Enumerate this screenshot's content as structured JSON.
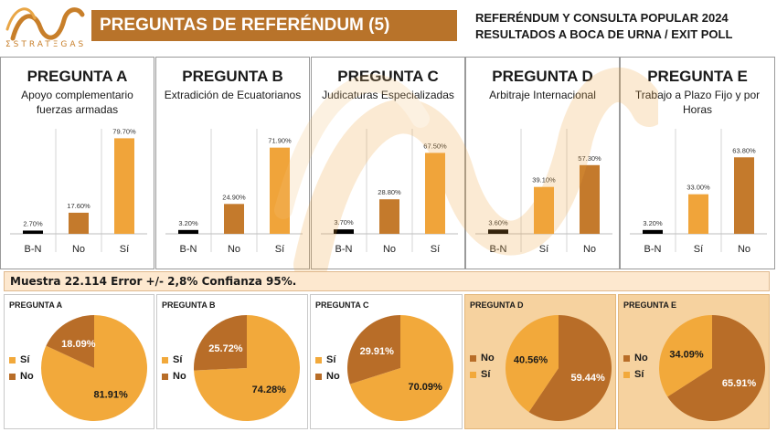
{
  "brand": {
    "logo_text": "ΣSTRATΞGAS"
  },
  "header": {
    "banner": "PREGUNTAS DE REFERÉNDUM (5)",
    "right_line1": "REFERÉNDUM Y CONSULTA POPULAR 2024",
    "right_line2": "RESULTADOS A BOCA DE URNA / EXIT POLL"
  },
  "colors": {
    "bar_dark": "#c47a2c",
    "bar_light": "#f0a43a",
    "bn": "#000000",
    "pie_dark": "#b86d28",
    "pie_light": "#f2a93b"
  },
  "chart_data": [
    {
      "type": "bar",
      "title": "PREGUNTA A",
      "subtitle": [
        "Apoyo complementario",
        "fuerzas armadas"
      ],
      "categories": [
        "B-N",
        "No",
        "Sí"
      ],
      "values": [
        2.7,
        17.6,
        79.7
      ],
      "labels": [
        "2.70%",
        "17.60%",
        "79.70%"
      ],
      "ylim": [
        0,
        80
      ]
    },
    {
      "type": "bar",
      "title": "PREGUNTA B",
      "subtitle": [
        "Extradición de Ecuatorianos"
      ],
      "categories": [
        "B-N",
        "No",
        "Sí"
      ],
      "values": [
        3.2,
        24.9,
        71.9
      ],
      "labels": [
        "3.20%",
        "24.90%",
        "71.90%"
      ],
      "ylim": [
        0,
        80
      ]
    },
    {
      "type": "bar",
      "title": "PREGUNTA C",
      "subtitle": [
        "Judicaturas Especializadas"
      ],
      "categories": [
        "B-N",
        "No",
        "Sí"
      ],
      "values": [
        3.7,
        28.8,
        67.5
      ],
      "labels": [
        "3.70%",
        "28.80%",
        "67.50%"
      ],
      "ylim": [
        0,
        80
      ]
    },
    {
      "type": "bar",
      "title": "PREGUNTA D",
      "subtitle": [
        "Arbitraje Internacional"
      ],
      "categories": [
        "B-N",
        "Sí",
        "No"
      ],
      "values": [
        3.6,
        39.1,
        57.3
      ],
      "labels": [
        "3.60%",
        "39.10%",
        "57.30%"
      ],
      "ylim": [
        0,
        80
      ]
    },
    {
      "type": "bar",
      "title": "PREGUNTA E",
      "subtitle": [
        "Trabajo a Plazo Fijo y por",
        "Horas"
      ],
      "categories": [
        "B-N",
        "Sí",
        "No"
      ],
      "values": [
        3.2,
        33.0,
        63.8
      ],
      "labels": [
        "3.20%",
        "33.00%",
        "63.80%"
      ],
      "ylim": [
        0,
        80
      ]
    },
    {
      "type": "pie",
      "title": "PREGUNTA A",
      "legend": [
        "Sí",
        "No"
      ],
      "values": [
        81.91,
        18.09
      ],
      "labels": [
        "81.91%",
        "18.09%"
      ]
    },
    {
      "type": "pie",
      "title": "PREGUNTA B",
      "legend": [
        "Sí",
        "No"
      ],
      "values": [
        74.28,
        25.72
      ],
      "labels": [
        "74.28%",
        "25.72%"
      ]
    },
    {
      "type": "pie",
      "title": "PREGUNTA C",
      "legend": [
        "Sí",
        "No"
      ],
      "values": [
        70.09,
        29.91
      ],
      "labels": [
        "70.09%",
        "29.91%"
      ]
    },
    {
      "type": "pie",
      "title": "PREGUNTA D",
      "legend": [
        "No",
        "Sí"
      ],
      "values": [
        59.44,
        40.56
      ],
      "labels": [
        "59.44%",
        "40.56%"
      ]
    },
    {
      "type": "pie",
      "title": "PREGUNTA E",
      "legend": [
        "No",
        "Sí"
      ],
      "values": [
        65.91,
        34.09
      ],
      "labels": [
        "65.91%",
        "34.09%"
      ]
    }
  ],
  "footer": {
    "muestra": "Muestra 22.114 Error +/- 2,8% Confianza 95%."
  }
}
